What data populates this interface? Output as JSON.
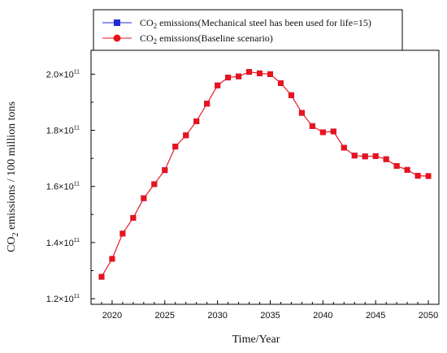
{
  "chart_data": {
    "type": "line",
    "title": "",
    "xlabel": "Time/Year",
    "ylabel": "CO₂ emissions / 100 million tons",
    "x_ticks": [
      {
        "value": 2020,
        "label": "2020"
      },
      {
        "value": 2025,
        "label": "2025"
      },
      {
        "value": 2030,
        "label": "2030"
      },
      {
        "value": 2035,
        "label": "2035"
      },
      {
        "value": 2040,
        "label": "2040"
      },
      {
        "value": 2045,
        "label": "2045"
      },
      {
        "value": 2050,
        "label": "2050"
      }
    ],
    "y_ticks": [
      {
        "value": 120000000000.0,
        "mantissa": "1.2×10",
        "exp": "11"
      },
      {
        "value": 140000000000.0,
        "mantissa": "1.4×10",
        "exp": "11"
      },
      {
        "value": 160000000000.0,
        "mantissa": "1.6×10",
        "exp": "11"
      },
      {
        "value": 180000000000.0,
        "mantissa": "1.8×10",
        "exp": "11"
      },
      {
        "value": 200000000000.0,
        "mantissa": "2.0×10",
        "exp": "11"
      }
    ],
    "xlim": [
      2018,
      2051
    ],
    "ylim": [
      118000000000.0,
      208500000000.0
    ],
    "grid": false,
    "legend_position": "top-center",
    "x": [
      2019,
      2020,
      2021,
      2022,
      2023,
      2024,
      2025,
      2026,
      2027,
      2028,
      2029,
      2030,
      2031,
      2032,
      2033,
      2034,
      2035,
      2036,
      2037,
      2038,
      2039,
      2040,
      2041,
      2042,
      2043,
      2044,
      2045,
      2046,
      2047,
      2048,
      2049,
      2050
    ],
    "series": [
      {
        "name": "CO₂ emissions(Mechanical  steel has been used for life=15)",
        "marker": "square",
        "color": "#1f2bd6",
        "values": [
          127800000000.0,
          134200000000.0,
          143200000000.0,
          148800000000.0,
          155800000000.0,
          160800000000.0,
          165800000000.0,
          174200000000.0,
          178200000000.0,
          183200000000.0,
          189500000000.0,
          196000000000.0,
          198800000000.0,
          199200000000.0,
          200800000000.0,
          200300000000.0,
          200000000000.0,
          196800000000.0,
          192500000000.0,
          186200000000.0,
          181500000000.0,
          179300000000.0,
          179600000000.0,
          173800000000.0,
          171000000000.0,
          170700000000.0,
          170800000000.0,
          169700000000.0,
          167300000000.0,
          165900000000.0,
          163800000000.0,
          163700000000.0
        ]
      },
      {
        "name": "CO₂ emissions(Baseline  scenario)",
        "marker": "circle",
        "color": "#e8141c",
        "values": [
          127800000000.0,
          134200000000.0,
          143200000000.0,
          148800000000.0,
          155800000000.0,
          160800000000.0,
          165800000000.0,
          174200000000.0,
          178200000000.0,
          183200000000.0,
          189500000000.0,
          196000000000.0,
          198800000000.0,
          199200000000.0,
          200800000000.0,
          200300000000.0,
          200000000000.0,
          196800000000.0,
          192500000000.0,
          186200000000.0,
          181500000000.0,
          179300000000.0,
          179600000000.0,
          173800000000.0,
          171000000000.0,
          170700000000.0,
          170800000000.0,
          169700000000.0,
          167300000000.0,
          165900000000.0,
          163800000000.0,
          163700000000.0
        ]
      }
    ],
    "legend": {
      "items": [
        {
          "prefix": "CO",
          "sub": "2",
          "rest": " emissions(Mechanical  steel has been used for life=15)"
        },
        {
          "prefix": "CO",
          "sub": "2",
          "rest": " emissions(Baseline  scenario)"
        }
      ]
    },
    "ylabel_parts": {
      "prefix": "CO",
      "sub": "2",
      "rest": " emissions / 100 million tons"
    },
    "line_color": "#e8141c",
    "axis_color": "#000000"
  }
}
